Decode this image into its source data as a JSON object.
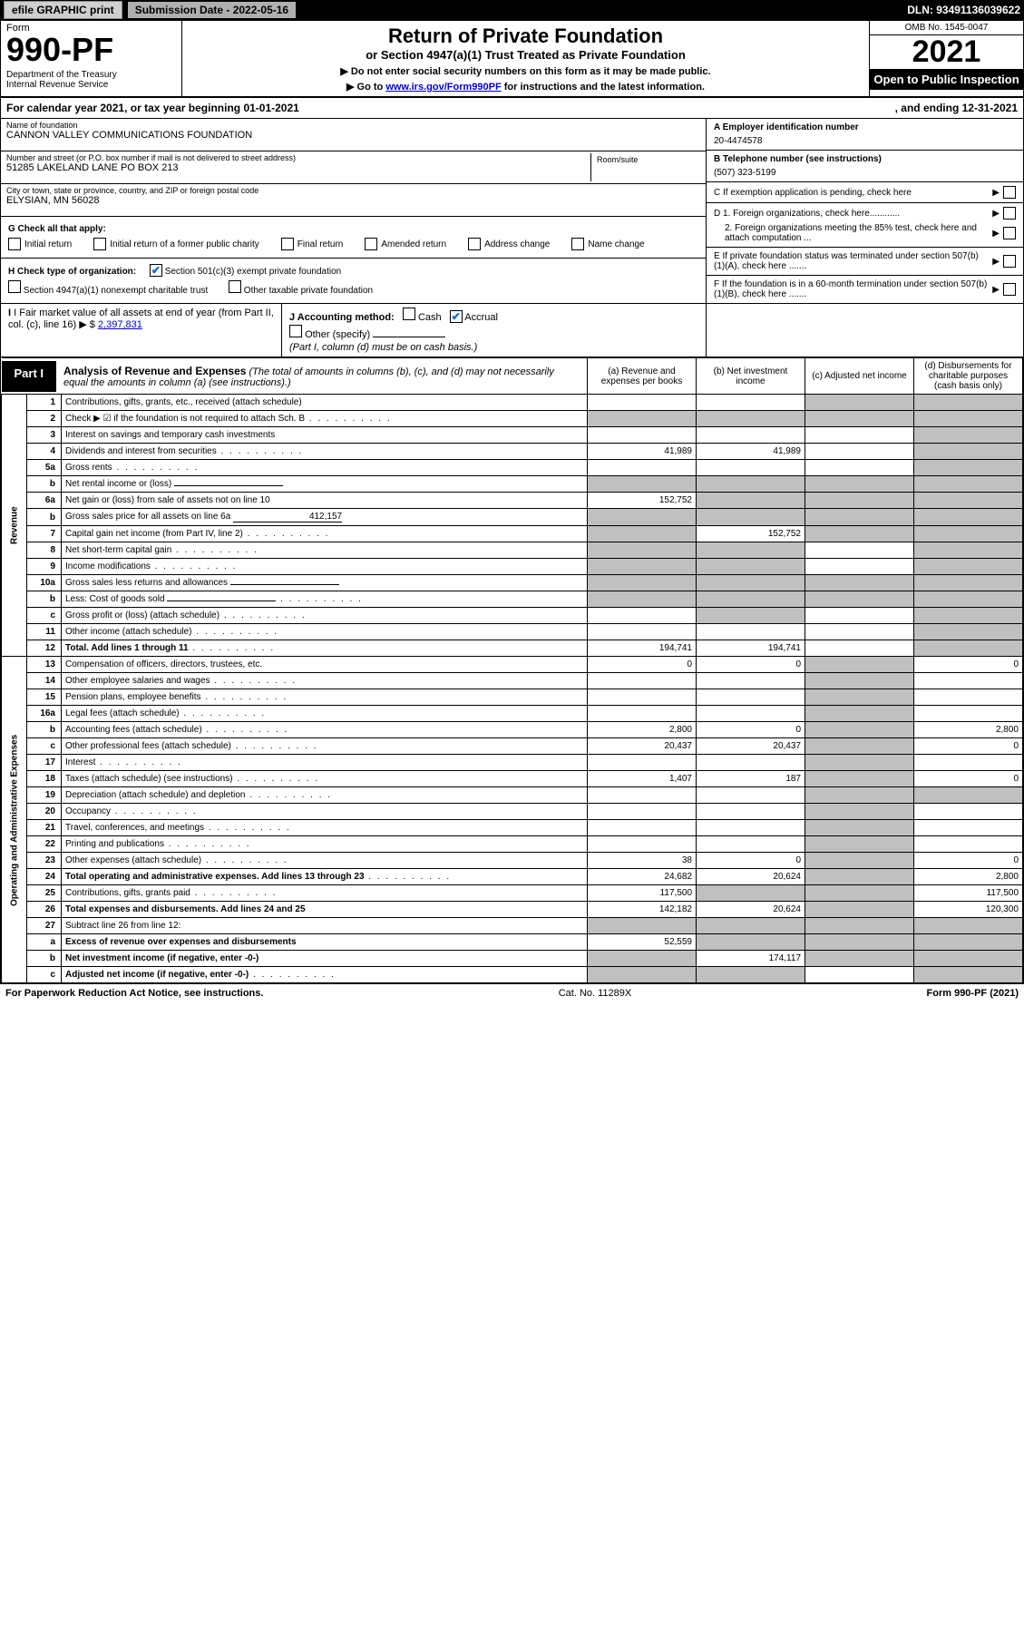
{
  "topbar": {
    "efile": "efile GRAPHIC print",
    "subdate_label": "Submission Date - 2022-05-16",
    "dln": "DLN: 93491136039622"
  },
  "header": {
    "form_word": "Form",
    "form_number": "990-PF",
    "dept": "Department of the Treasury\nInternal Revenue Service",
    "title": "Return of Private Foundation",
    "subtitle": "or Section 4947(a)(1) Trust Treated as Private Foundation",
    "note1": "▶ Do not enter social security numbers on this form as it may be made public.",
    "note2_pre": "▶ Go to ",
    "note2_link": "www.irs.gov/Form990PF",
    "note2_post": " for instructions and the latest information.",
    "omb": "OMB No. 1545-0047",
    "year": "2021",
    "open": "Open to Public Inspection"
  },
  "calyear": {
    "text": "For calendar year 2021, or tax year beginning 01-01-2021",
    "end": ", and ending 12-31-2021"
  },
  "id": {
    "name_lbl": "Name of foundation",
    "name": "CANNON VALLEY COMMUNICATIONS FOUNDATION",
    "addr_lbl": "Number and street (or P.O. box number if mail is not delivered to street address)",
    "addr": "51285 LAKELAND LANE PO BOX 213",
    "room_lbl": "Room/suite",
    "city_lbl": "City or town, state or province, country, and ZIP or foreign postal code",
    "city": "ELYSIAN, MN  56028",
    "a_lbl": "A Employer identification number",
    "a_val": "20-4474578",
    "b_lbl": "B Telephone number (see instructions)",
    "b_val": "(507) 323-5199",
    "c_lbl": "C If exemption application is pending, check here",
    "d1": "D 1. Foreign organizations, check here............",
    "d2": "2. Foreign organizations meeting the 85% test, check here and attach computation ...",
    "e_lbl": "E  If private foundation status was terminated under section 507(b)(1)(A), check here .......",
    "f_lbl": "F  If the foundation is in a 60-month termination under section 507(b)(1)(B), check here ......."
  },
  "g": {
    "lbl": "G Check all that apply:",
    "opts": [
      "Initial return",
      "Initial return of a former public charity",
      "Final return",
      "Amended return",
      "Address change",
      "Name change"
    ]
  },
  "h": {
    "lbl": "H Check type of organization:",
    "opt1": "Section 501(c)(3) exempt private foundation",
    "opt2": "Section 4947(a)(1) nonexempt charitable trust",
    "opt3": "Other taxable private foundation"
  },
  "i": {
    "lbl": "I Fair market value of all assets at end of year (from Part II, col. (c), line 16)",
    "val": "2,397,831"
  },
  "j": {
    "lbl": "J Accounting method:",
    "cash": "Cash",
    "accrual": "Accrual",
    "other": "Other (specify)",
    "note": "(Part I, column (d) must be on cash basis.)"
  },
  "part1": {
    "tab": "Part I",
    "title": "Analysis of Revenue and Expenses",
    "title_note": "(The total of amounts in columns (b), (c), and (d) may not necessarily equal the amounts in column (a) (see instructions).)",
    "col_a": "(a)   Revenue and expenses per books",
    "col_b": "(b)   Net investment income",
    "col_c": "(c)   Adjusted net income",
    "col_d": "(d)   Disbursements for charitable purposes (cash basis only)"
  },
  "vlabels": {
    "rev": "Revenue",
    "exp": "Operating and Administrative Expenses"
  },
  "rows": [
    {
      "n": "1",
      "d": "Contributions, gifts, grants, etc., received (attach schedule)",
      "a": "",
      "b": "",
      "c": "g",
      "dd": "g"
    },
    {
      "n": "2",
      "d": "Check ▶ ☑ if the foundation is not required to attach Sch. B",
      "dots": true,
      "a": "g",
      "b": "g",
      "c": "g",
      "dd": "g"
    },
    {
      "n": "3",
      "d": "Interest on savings and temporary cash investments",
      "a": "",
      "b": "",
      "c": "",
      "dd": "g"
    },
    {
      "n": "4",
      "d": "Dividends and interest from securities",
      "dots": true,
      "a": "41,989",
      "b": "41,989",
      "c": "",
      "dd": "g"
    },
    {
      "n": "5a",
      "d": "Gross rents",
      "dots": true,
      "a": "",
      "b": "",
      "c": "",
      "dd": "g"
    },
    {
      "n": "b",
      "d": "Net rental income or (loss)",
      "uline": true,
      "a": "g",
      "b": "g",
      "c": "g",
      "dd": "g"
    },
    {
      "n": "6a",
      "d": "Net gain or (loss) from sale of assets not on line 10",
      "a": "152,752",
      "b": "g",
      "c": "g",
      "dd": "g"
    },
    {
      "n": "b",
      "d": "Gross sales price for all assets on line 6a",
      "uline": true,
      "ulv": "412,157",
      "a": "g",
      "b": "g",
      "c": "g",
      "dd": "g"
    },
    {
      "n": "7",
      "d": "Capital gain net income (from Part IV, line 2)",
      "dots": true,
      "a": "g",
      "b": "152,752",
      "c": "g",
      "dd": "g"
    },
    {
      "n": "8",
      "d": "Net short-term capital gain",
      "dots": true,
      "a": "g",
      "b": "g",
      "c": "",
      "dd": "g"
    },
    {
      "n": "9",
      "d": "Income modifications",
      "dots": true,
      "a": "g",
      "b": "g",
      "c": "",
      "dd": "g"
    },
    {
      "n": "10a",
      "d": "Gross sales less returns and allowances",
      "uline": true,
      "a": "g",
      "b": "g",
      "c": "g",
      "dd": "g"
    },
    {
      "n": "b",
      "d": "Less: Cost of goods sold",
      "dots": true,
      "uline": true,
      "a": "g",
      "b": "g",
      "c": "g",
      "dd": "g"
    },
    {
      "n": "c",
      "d": "Gross profit or (loss) (attach schedule)",
      "dots": true,
      "a": "",
      "b": "g",
      "c": "",
      "dd": "g"
    },
    {
      "n": "11",
      "d": "Other income (attach schedule)",
      "dots": true,
      "a": "",
      "b": "",
      "c": "",
      "dd": "g"
    },
    {
      "n": "12",
      "d": "Total. Add lines 1 through 11",
      "dots": true,
      "bold": true,
      "a": "194,741",
      "b": "194,741",
      "c": "",
      "dd": "g"
    },
    {
      "n": "13",
      "d": "Compensation of officers, directors, trustees, etc.",
      "a": "0",
      "b": "0",
      "c": "g",
      "dd": "0"
    },
    {
      "n": "14",
      "d": "Other employee salaries and wages",
      "dots": true,
      "a": "",
      "b": "",
      "c": "g",
      "dd": ""
    },
    {
      "n": "15",
      "d": "Pension plans, employee benefits",
      "dots": true,
      "a": "",
      "b": "",
      "c": "g",
      "dd": ""
    },
    {
      "n": "16a",
      "d": "Legal fees (attach schedule)",
      "dots": true,
      "a": "",
      "b": "",
      "c": "g",
      "dd": ""
    },
    {
      "n": "b",
      "d": "Accounting fees (attach schedule)",
      "dots": true,
      "a": "2,800",
      "b": "0",
      "c": "g",
      "dd": "2,800"
    },
    {
      "n": "c",
      "d": "Other professional fees (attach schedule)",
      "dots": true,
      "a": "20,437",
      "b": "20,437",
      "c": "g",
      "dd": "0"
    },
    {
      "n": "17",
      "d": "Interest",
      "dots": true,
      "a": "",
      "b": "",
      "c": "g",
      "dd": ""
    },
    {
      "n": "18",
      "d": "Taxes (attach schedule) (see instructions)",
      "dots": true,
      "a": "1,407",
      "b": "187",
      "c": "g",
      "dd": "0"
    },
    {
      "n": "19",
      "d": "Depreciation (attach schedule) and depletion",
      "dots": true,
      "a": "",
      "b": "",
      "c": "g",
      "dd": "g"
    },
    {
      "n": "20",
      "d": "Occupancy",
      "dots": true,
      "a": "",
      "b": "",
      "c": "g",
      "dd": ""
    },
    {
      "n": "21",
      "d": "Travel, conferences, and meetings",
      "dots": true,
      "a": "",
      "b": "",
      "c": "g",
      "dd": ""
    },
    {
      "n": "22",
      "d": "Printing and publications",
      "dots": true,
      "a": "",
      "b": "",
      "c": "g",
      "dd": ""
    },
    {
      "n": "23",
      "d": "Other expenses (attach schedule)",
      "dots": true,
      "a": "38",
      "b": "0",
      "c": "g",
      "dd": "0"
    },
    {
      "n": "24",
      "d": "Total operating and administrative expenses. Add lines 13 through 23",
      "dots": true,
      "bold": true,
      "a": "24,682",
      "b": "20,624",
      "c": "g",
      "dd": "2,800"
    },
    {
      "n": "25",
      "d": "Contributions, gifts, grants paid",
      "dots": true,
      "a": "117,500",
      "b": "g",
      "c": "g",
      "dd": "117,500"
    },
    {
      "n": "26",
      "d": "Total expenses and disbursements. Add lines 24 and 25",
      "bold": true,
      "a": "142,182",
      "b": "20,624",
      "c": "g",
      "dd": "120,300"
    },
    {
      "n": "27",
      "d": "Subtract line 26 from line 12:",
      "a": "g",
      "b": "g",
      "c": "g",
      "dd": "g"
    },
    {
      "n": "a",
      "d": "Excess of revenue over expenses and disbursements",
      "bold": true,
      "a": "52,559",
      "b": "g",
      "c": "g",
      "dd": "g"
    },
    {
      "n": "b",
      "d": "Net investment income (if negative, enter -0-)",
      "bold": true,
      "a": "g",
      "b": "174,117",
      "c": "g",
      "dd": "g"
    },
    {
      "n": "c",
      "d": "Adjusted net income (if negative, enter -0-)",
      "dots": true,
      "bold": true,
      "a": "g",
      "b": "g",
      "c": "",
      "dd": "g"
    }
  ],
  "footer": {
    "left": "For Paperwork Reduction Act Notice, see instructions.",
    "mid": "Cat. No. 11289X",
    "right": "Form 990-PF (2021)"
  },
  "colors": {
    "grey": "#c0c0c0",
    "link": "#0000cc",
    "check": "#0066cc"
  }
}
